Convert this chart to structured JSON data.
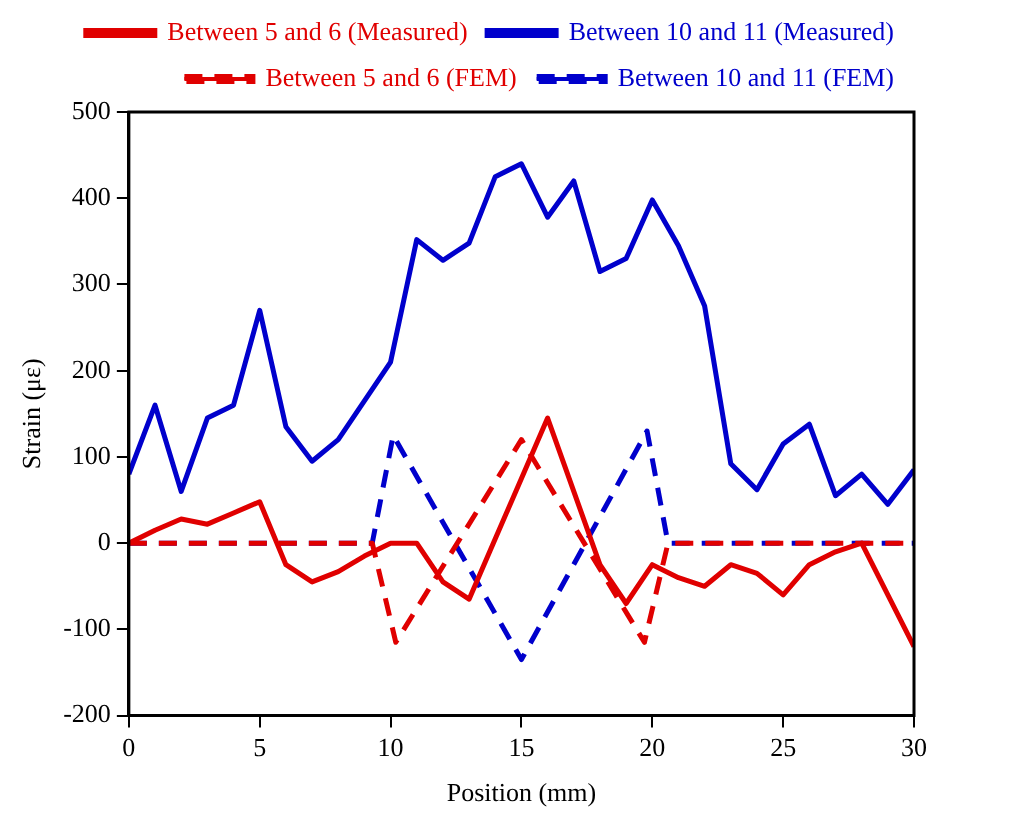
{
  "chart_data": {
    "type": "line",
    "xlabel": "Position (mm)",
    "ylabel": "Strain (με)",
    "xlim": [
      0,
      30
    ],
    "xticks": [
      0,
      5,
      10,
      15,
      20,
      25,
      30
    ],
    "ylim": [
      -200,
      500
    ],
    "yticks": [
      -200,
      -100,
      0,
      100,
      200,
      300,
      400,
      500
    ],
    "grid": false,
    "legend": "top right",
    "marker": "none",
    "series": [
      {
        "name": "Between 5 and 6 (Measured)",
        "color": "#e00000",
        "line_style": "solid",
        "x": [
          0,
          1,
          2,
          3,
          4,
          5,
          6,
          7,
          8,
          9,
          10,
          11,
          12,
          13,
          14,
          15,
          16,
          17,
          18,
          19,
          20,
          21,
          22,
          23,
          24,
          25,
          26,
          27,
          28,
          29,
          30
        ],
        "values": [
          0,
          15,
          28,
          22,
          35,
          48,
          -25,
          -45,
          -33,
          -15,
          0,
          0,
          -45,
          -65,
          5,
          75,
          145,
          60,
          -25,
          -70,
          -25,
          -40,
          -50,
          -25,
          -35,
          -60,
          -25,
          -10,
          0,
          -60,
          -120
        ]
      },
      {
        "name": "Between 10 and 11 (Measured)",
        "color": "#0000cc",
        "line_style": "solid",
        "x": [
          0,
          1,
          2,
          3,
          4,
          5,
          6,
          7,
          8,
          9,
          10,
          11,
          12,
          13,
          14,
          15,
          16,
          17,
          18,
          19,
          20,
          21,
          22,
          23,
          24,
          25,
          26,
          27,
          28,
          29,
          30
        ],
        "values": [
          80,
          160,
          60,
          145,
          160,
          270,
          135,
          95,
          120,
          165,
          210,
          352,
          328,
          348,
          425,
          440,
          378,
          420,
          315,
          330,
          398,
          345,
          275,
          92,
          62,
          115,
          138,
          55,
          80,
          45,
          85
        ]
      },
      {
        "name": "Between 5 and 6 (FEM)",
        "color": "#e00000",
        "line_style": "dashed",
        "x": [
          0,
          9.3,
          10.2,
          15,
          19.7,
          20.6,
          30
        ],
        "values": [
          0,
          0,
          -115,
          120,
          -115,
          0,
          0
        ]
      },
      {
        "name": "Between 10 and 11 (FEM)",
        "color": "#0000cc",
        "line_style": "dashed",
        "x": [
          0,
          9.3,
          10.1,
          15,
          19.8,
          20.6,
          30
        ],
        "values": [
          0,
          0,
          125,
          -135,
          130,
          0,
          0
        ]
      }
    ]
  }
}
